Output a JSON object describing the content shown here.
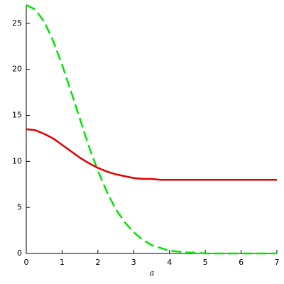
{
  "chart_data": {
    "type": "line",
    "x_label": "a",
    "x": [
      0,
      0.25,
      0.5,
      0.75,
      1,
      1.25,
      1.5,
      1.75,
      2,
      2.25,
      2.5,
      2.75,
      3,
      3.25,
      3.5,
      3.75,
      4,
      4.25,
      4.5,
      4.75,
      5,
      5.25,
      5.5,
      5.75,
      6,
      6.25,
      6.5,
      6.75,
      7
    ],
    "series": [
      {
        "color": "#00e600",
        "dash": true,
        "values": [
          27,
          26.5,
          25.2,
          23.1,
          20.5,
          17.6,
          14.6,
          11.6,
          9.0,
          6.7,
          4.8,
          3.4,
          2.3,
          1.5,
          0.9,
          0.6,
          0.3,
          0.2,
          0.1,
          0.1,
          0,
          0,
          0,
          0,
          0,
          0,
          0,
          0,
          0
        ]
      },
      {
        "color": "#e00000",
        "dash": false,
        "values": [
          13.5,
          13.4,
          13.0,
          12.5,
          11.8,
          11.1,
          10.4,
          9.8,
          9.3,
          8.9,
          8.6,
          8.4,
          8.2,
          8.1,
          8.1,
          8.0,
          8.0,
          8.0,
          8.0,
          8.0,
          8.0,
          8.0,
          8.0,
          8.0,
          8.0,
          8.0,
          8.0,
          8.0,
          8.0
        ]
      }
    ],
    "xlim": [
      0,
      7
    ],
    "xticks": [
      0,
      1,
      2,
      3,
      4,
      5,
      6,
      7
    ],
    "ylim": [
      0,
      27
    ],
    "yticks": [
      0,
      5,
      10,
      15,
      20,
      25
    ]
  }
}
